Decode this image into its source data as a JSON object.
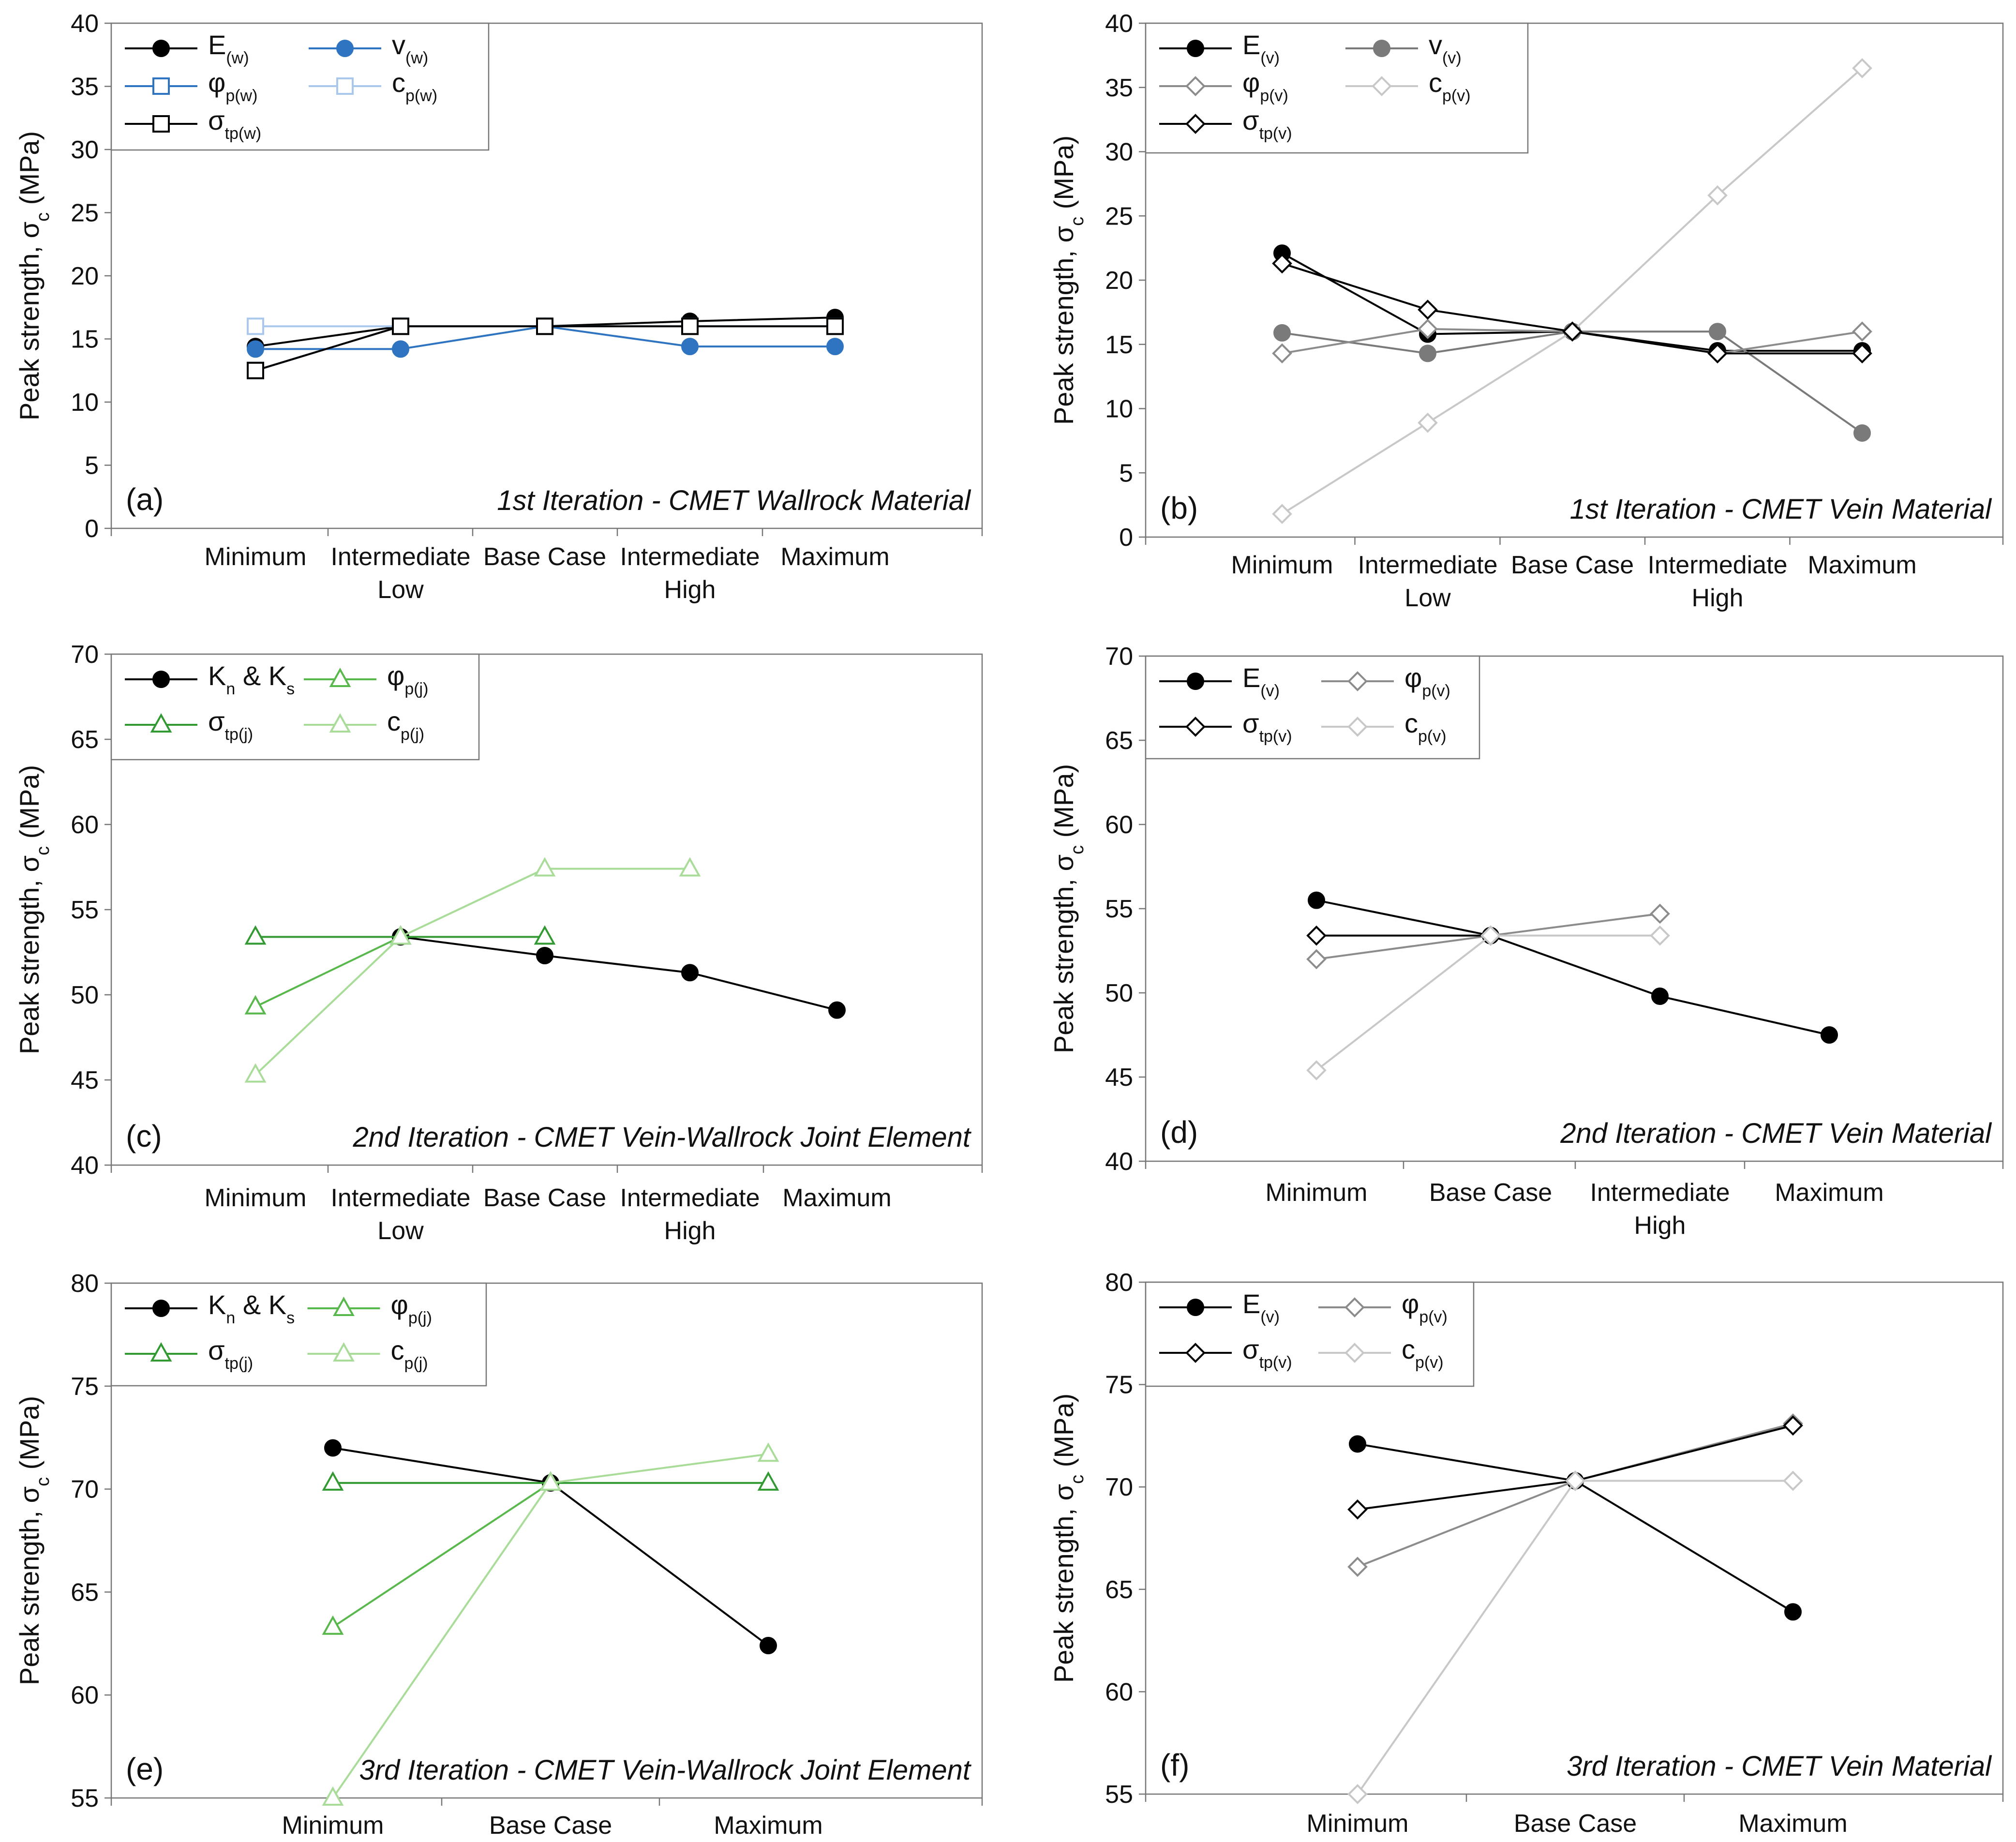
{
  "figure": {
    "y_axis_title": {
      "main": "Peak strength, σ",
      "sub": "c",
      "unit": " (MPa)"
    }
  },
  "chart_data": [
    {
      "id": "a",
      "type": "line",
      "panel_label": "(a)",
      "title": "1st Iteration - CMET Wallrock Material",
      "ylim": [
        0,
        40
      ],
      "yticks": [
        0,
        5,
        10,
        15,
        20,
        25,
        30,
        35,
        40
      ],
      "categories": [
        [
          "Minimum"
        ],
        [
          "Intermediate",
          "Low"
        ],
        [
          "Base Case"
        ],
        [
          "Intermediate",
          "High"
        ],
        [
          "Maximum"
        ]
      ],
      "series": [
        {
          "name": "E",
          "sub": "(w)",
          "color": "#000000",
          "marker": "circle",
          "filled": true,
          "values": [
            14.4,
            16.0,
            16.0,
            16.4,
            16.7
          ]
        },
        {
          "name": "v",
          "sub": "(w)",
          "color": "#2f74c0",
          "marker": "circle",
          "filled": true,
          "values": [
            14.2,
            14.2,
            16.0,
            14.4,
            14.4
          ]
        },
        {
          "name": "φ",
          "sub": "p(w)",
          "color": "#2f74c0",
          "marker": "square",
          "filled": false,
          "values": [
            12.5,
            16.0,
            16.0,
            16.0,
            16.0
          ]
        },
        {
          "name": "c",
          "sub": "p(w)",
          "color": "#a9c8ec",
          "marker": "square",
          "filled": false,
          "values": [
            16.0,
            16.0,
            16.0,
            16.0,
            16.0
          ]
        },
        {
          "name": "σ",
          "sub": "tp(w)",
          "color": "#000000",
          "marker": "square",
          "filled": false,
          "values": [
            12.5,
            16.0,
            16.0,
            16.0,
            16.0
          ]
        }
      ]
    },
    {
      "id": "b",
      "type": "line",
      "panel_label": "(b)",
      "title": "1st Iteration - CMET Vein Material",
      "ylim": [
        0,
        40
      ],
      "yticks": [
        0,
        5,
        10,
        15,
        20,
        25,
        30,
        35,
        40
      ],
      "categories": [
        [
          "Minimum"
        ],
        [
          "Intermediate",
          "Low"
        ],
        [
          "Base Case"
        ],
        [
          "Intermediate",
          "High"
        ],
        [
          "Maximum"
        ]
      ],
      "series": [
        {
          "name": "E",
          "sub": "(v)",
          "color": "#000000",
          "marker": "circle",
          "filled": true,
          "values": [
            22.1,
            15.8,
            16.0,
            14.5,
            14.5
          ]
        },
        {
          "name": "v",
          "sub": "(v)",
          "color": "#7a7a7a",
          "marker": "circle",
          "filled": true,
          "values": [
            15.9,
            14.3,
            16.0,
            16.0,
            8.1
          ]
        },
        {
          "name": "φ",
          "sub": "p(v)",
          "color": "#8c8c8c",
          "marker": "diamond",
          "filled": false,
          "values": [
            14.3,
            16.2,
            16.0,
            14.3,
            16.0
          ]
        },
        {
          "name": "c",
          "sub": "p(v)",
          "color": "#c8c8c8",
          "marker": "diamond",
          "filled": false,
          "values": [
            1.8,
            8.9,
            16.0,
            26.6,
            36.5
          ]
        },
        {
          "name": "σ",
          "sub": "tp(v)",
          "color": "#000000",
          "marker": "diamond",
          "filled": false,
          "values": [
            21.3,
            17.7,
            16.0,
            14.3,
            14.3
          ]
        }
      ]
    },
    {
      "id": "c",
      "type": "line",
      "panel_label": "(c)",
      "title": "2nd Iteration - CMET Vein-Wallrock Joint Element",
      "ylim": [
        40,
        70
      ],
      "yticks": [
        40,
        45,
        50,
        55,
        60,
        65,
        70
      ],
      "categories": [
        [
          "Minimum"
        ],
        [
          "Intermediate",
          "Low"
        ],
        [
          "Base Case"
        ],
        [
          "Intermediate",
          "High"
        ],
        [
          "Maximum"
        ]
      ],
      "series": [
        {
          "name": "K",
          "sub": "n",
          "name2": " & K",
          "sub2": "s",
          "color": "#000000",
          "marker": "circle",
          "filled": true,
          "values": [
            null,
            53.4,
            52.3,
            51.3,
            49.1
          ]
        },
        {
          "name": "φ",
          "sub": "p(j)",
          "color": "#58b84c",
          "marker": "triangle",
          "filled": false,
          "values": [
            49.3,
            53.4,
            null,
            null,
            null
          ]
        },
        {
          "name": "σ",
          "sub": "tp(j)",
          "color": "#339933",
          "marker": "triangle",
          "filled": false,
          "values": [
            53.4,
            53.4,
            53.4,
            null,
            null
          ]
        },
        {
          "name": "c",
          "sub": "p(j)",
          "color": "#a8dc98",
          "marker": "triangle",
          "filled": false,
          "values": [
            45.3,
            53.4,
            57.4,
            57.4,
            null
          ]
        }
      ]
    },
    {
      "id": "d",
      "type": "line",
      "panel_label": "(d)",
      "title": "2nd Iteration - CMET Vein Material",
      "ylim": [
        40,
        70
      ],
      "yticks": [
        40,
        45,
        50,
        55,
        60,
        65,
        70
      ],
      "categories": [
        [
          "Minimum"
        ],
        [
          "Base Case"
        ],
        [
          "Intermediate",
          "High"
        ],
        [
          "Maximum"
        ]
      ],
      "series": [
        {
          "name": "E",
          "sub": "(v)",
          "color": "#000000",
          "marker": "circle",
          "filled": true,
          "values": [
            55.5,
            53.4,
            49.8,
            47.5
          ]
        },
        {
          "name": "φ",
          "sub": "p(v)",
          "color": "#8c8c8c",
          "marker": "diamond",
          "filled": false,
          "values": [
            52.0,
            53.4,
            54.7,
            null
          ]
        },
        {
          "name": "σ",
          "sub": "tp(v)",
          "color": "#000000",
          "marker": "diamond",
          "filled": false,
          "values": [
            53.4,
            53.4,
            null,
            null
          ]
        },
        {
          "name": "c",
          "sub": "p(v)",
          "color": "#c8c8c8",
          "marker": "diamond",
          "filled": false,
          "values": [
            45.4,
            53.4,
            53.4,
            null
          ]
        }
      ]
    },
    {
      "id": "e",
      "type": "line",
      "panel_label": "(e)",
      "title": "3rd Iteration - CMET Vein-Wallrock Joint Element",
      "ylim": [
        55,
        80
      ],
      "yticks": [
        55,
        60,
        65,
        70,
        75,
        80
      ],
      "categories": [
        [
          "Minimum"
        ],
        [
          "Base Case"
        ],
        [
          "Maximum"
        ]
      ],
      "series": [
        {
          "name": "K",
          "sub": "n",
          "name2": " & K",
          "sub2": "s",
          "color": "#000000",
          "marker": "circle",
          "filled": true,
          "values": [
            72.0,
            70.3,
            62.4
          ]
        },
        {
          "name": "φ",
          "sub": "p(j)",
          "color": "#58b84c",
          "marker": "triangle",
          "filled": false,
          "values": [
            63.3,
            70.3,
            null
          ]
        },
        {
          "name": "σ",
          "sub": "tp(j)",
          "color": "#339933",
          "marker": "triangle",
          "filled": false,
          "values": [
            70.3,
            70.3,
            70.3
          ]
        },
        {
          "name": "c",
          "sub": "p(j)",
          "color": "#a8dc98",
          "marker": "triangle",
          "filled": false,
          "values": [
            55.0,
            70.3,
            71.7
          ]
        }
      ]
    },
    {
      "id": "f",
      "type": "line",
      "panel_label": "(f)",
      "title": "3rd Iteration - CMET Vein Material",
      "ylim": [
        55,
        80
      ],
      "yticks": [
        55,
        60,
        65,
        70,
        75,
        80
      ],
      "categories": [
        [
          "Minimum"
        ],
        [
          "Base Case"
        ],
        [
          "Maximum"
        ]
      ],
      "series": [
        {
          "name": "E",
          "sub": "(v)",
          "color": "#000000",
          "marker": "circle",
          "filled": true,
          "values": [
            72.1,
            70.3,
            63.9
          ]
        },
        {
          "name": "φ",
          "sub": "p(v)",
          "color": "#8c8c8c",
          "marker": "diamond",
          "filled": false,
          "values": [
            66.1,
            70.3,
            73.1
          ]
        },
        {
          "name": "σ",
          "sub": "tp(v)",
          "color": "#000000",
          "marker": "diamond",
          "filled": false,
          "values": [
            68.9,
            70.3,
            73.0
          ]
        },
        {
          "name": "c",
          "sub": "p(v)",
          "color": "#c8c8c8",
          "marker": "diamond",
          "filled": false,
          "values": [
            55.0,
            70.3,
            70.3
          ]
        }
      ]
    }
  ]
}
